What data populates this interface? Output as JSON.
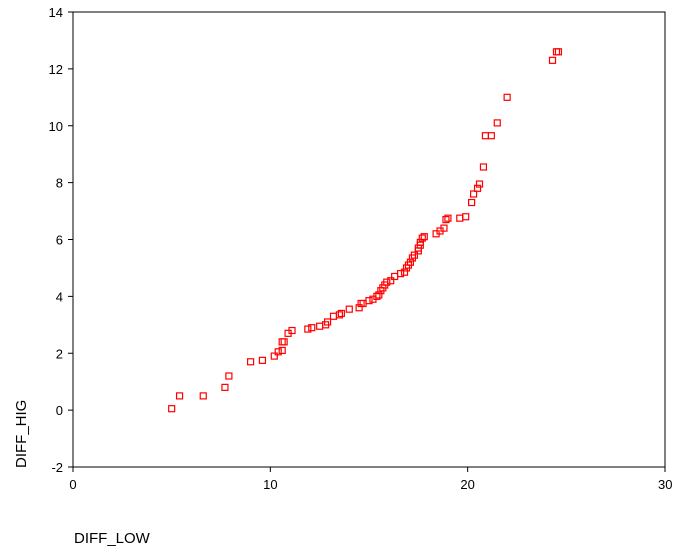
{
  "chart_data": {
    "type": "scatter",
    "xlabel": "DIFF_LOW",
    "ylabel": "DIFF_HIG",
    "xlim": [
      0,
      30
    ],
    "ylim": [
      -2,
      14
    ],
    "x_ticks": [
      "0",
      "10",
      "20",
      "30"
    ],
    "y_ticks": [
      "-2",
      "0",
      "2",
      "4",
      "6",
      "8",
      "10",
      "12",
      "14"
    ],
    "grid": false,
    "marker": "hollow-square",
    "marker_color": "#ff0000",
    "series": [
      {
        "points": [
          [
            5.0,
            0.05
          ],
          [
            5.4,
            0.5
          ],
          [
            6.6,
            0.5
          ],
          [
            7.7,
            0.8
          ],
          [
            7.9,
            1.2
          ],
          [
            9.0,
            1.7
          ],
          [
            9.6,
            1.75
          ],
          [
            10.2,
            1.9
          ],
          [
            10.4,
            2.05
          ],
          [
            10.6,
            2.1
          ],
          [
            10.6,
            2.4
          ],
          [
            10.7,
            2.4
          ],
          [
            10.9,
            2.7
          ],
          [
            11.1,
            2.8
          ],
          [
            11.9,
            2.85
          ],
          [
            12.1,
            2.9
          ],
          [
            12.5,
            2.95
          ],
          [
            12.8,
            3.0
          ],
          [
            12.9,
            3.1
          ],
          [
            13.2,
            3.3
          ],
          [
            13.5,
            3.35
          ],
          [
            13.6,
            3.4
          ],
          [
            14.0,
            3.55
          ],
          [
            14.5,
            3.6
          ],
          [
            14.6,
            3.75
          ],
          [
            14.7,
            3.75
          ],
          [
            15.0,
            3.85
          ],
          [
            15.2,
            3.9
          ],
          [
            15.4,
            4.0
          ],
          [
            15.5,
            4.05
          ],
          [
            15.6,
            4.2
          ],
          [
            15.7,
            4.3
          ],
          [
            15.8,
            4.4
          ],
          [
            15.9,
            4.5
          ],
          [
            16.1,
            4.55
          ],
          [
            16.3,
            4.7
          ],
          [
            16.6,
            4.8
          ],
          [
            16.8,
            4.85
          ],
          [
            16.9,
            5.0
          ],
          [
            17.0,
            5.1
          ],
          [
            17.1,
            5.2
          ],
          [
            17.2,
            5.35
          ],
          [
            17.3,
            5.45
          ],
          [
            17.5,
            5.6
          ],
          [
            17.5,
            5.7
          ],
          [
            17.6,
            5.8
          ],
          [
            17.6,
            5.9
          ],
          [
            17.7,
            6.05
          ],
          [
            17.8,
            6.1
          ],
          [
            18.4,
            6.2
          ],
          [
            18.6,
            6.3
          ],
          [
            18.8,
            6.4
          ],
          [
            18.9,
            6.7
          ],
          [
            19.0,
            6.75
          ],
          [
            19.6,
            6.75
          ],
          [
            19.9,
            6.8
          ],
          [
            20.2,
            7.3
          ],
          [
            20.3,
            7.6
          ],
          [
            20.5,
            7.8
          ],
          [
            20.6,
            7.95
          ],
          [
            20.8,
            8.55
          ],
          [
            20.9,
            9.65
          ],
          [
            21.2,
            9.65
          ],
          [
            21.5,
            10.1
          ],
          [
            22.0,
            11.0
          ],
          [
            24.3,
            12.3
          ],
          [
            24.5,
            12.6
          ],
          [
            24.6,
            12.6
          ]
        ]
      }
    ]
  }
}
